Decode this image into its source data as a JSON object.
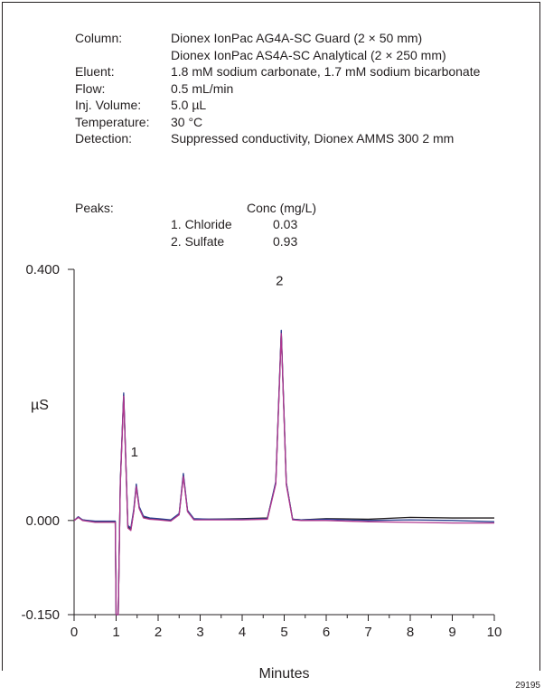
{
  "conditions": [
    {
      "label": "Column:",
      "values": [
        "Dionex IonPac AG4A-SC Guard (2 × 50 mm)",
        "Dionex IonPac AS4A-SC Analytical (2 × 250 mm)"
      ]
    },
    {
      "label": "Eluent:",
      "values": [
        "1.8 mM sodium carbonate, 1.7 mM sodium bicarbonate"
      ]
    },
    {
      "label": "Flow:",
      "values": [
        "0.5 mL/min"
      ]
    },
    {
      "label": "Inj. Volume:",
      "values": [
        "5.0 µL"
      ]
    },
    {
      "label": "Temperature:",
      "values": [
        "30 °C"
      ]
    },
    {
      "label": "Detection:",
      "values": [
        "Suppressed conductivity, Dionex AMMS 300 2 mm"
      ]
    }
  ],
  "peaks_table": {
    "label": "Peaks:",
    "conc_header": "Conc (mg/L)",
    "rows": [
      {
        "name": "1. Chloride",
        "conc": "0.03"
      },
      {
        "name": "2. Sulfate",
        "conc": "0.93"
      }
    ]
  },
  "figure_id": "29195",
  "chart_data": {
    "type": "line",
    "xlabel": "Minutes",
    "ylabel": "µS",
    "xlim": [
      0,
      10
    ],
    "ylim": [
      -0.15,
      0.4
    ],
    "x_ticks": [
      "0",
      "1",
      "2",
      "3",
      "4",
      "5",
      "6",
      "7",
      "8",
      "9",
      "10"
    ],
    "y_ticks": [
      "0.400",
      "0.000",
      "-0.150"
    ],
    "grid": false,
    "peak_labels": [
      {
        "text": "1",
        "x": 1.48,
        "y": 0.102
      },
      {
        "text": "2",
        "x": 4.93,
        "y": 0.375
      }
    ],
    "series": [
      {
        "color": "#231f20",
        "x": [
          0,
          0.1,
          0.2,
          0.5,
          0.98,
          1.0,
          1.05,
          1.1,
          1.18,
          1.28,
          1.35,
          1.42,
          1.48,
          1.55,
          1.65,
          1.8,
          2.0,
          2.3,
          2.5,
          2.6,
          2.7,
          2.85,
          3.2,
          4.0,
          4.6,
          4.8,
          4.93,
          5.05,
          5.2,
          5.4,
          6.0,
          7.0,
          8.0,
          9.0,
          10.0
        ],
        "y": [
          0.0,
          0.005,
          0.001,
          -0.002,
          -0.002,
          -0.15,
          -0.15,
          0.06,
          0.2,
          -0.01,
          -0.015,
          0.015,
          0.055,
          0.02,
          0.006,
          0.003,
          0.002,
          0.0,
          0.01,
          0.072,
          0.015,
          0.002,
          0.002,
          0.003,
          0.004,
          0.06,
          0.3,
          0.06,
          0.002,
          0.001,
          0.003,
          0.002,
          0.005,
          0.004,
          0.004
        ]
      },
      {
        "color": "#2a3f8f",
        "x": [
          0,
          0.1,
          0.2,
          0.5,
          0.98,
          1.0,
          1.05,
          1.1,
          1.18,
          1.28,
          1.35,
          1.42,
          1.48,
          1.55,
          1.65,
          1.8,
          2.0,
          2.3,
          2.5,
          2.6,
          2.7,
          2.85,
          3.2,
          4.0,
          4.6,
          4.8,
          4.93,
          5.05,
          5.2,
          5.4,
          6.0,
          7.0,
          8.0,
          9.0,
          10.0
        ],
        "y": [
          0.0,
          0.006,
          0.001,
          -0.001,
          -0.001,
          -0.15,
          -0.15,
          0.062,
          0.203,
          -0.008,
          -0.012,
          0.018,
          0.058,
          0.022,
          0.007,
          0.004,
          0.003,
          0.001,
          0.011,
          0.075,
          0.016,
          0.003,
          0.002,
          0.002,
          0.003,
          0.062,
          0.303,
          0.06,
          0.002,
          0.001,
          0.002,
          0.0,
          0.001,
          0.0,
          -0.002
        ]
      },
      {
        "color": "#b0378f",
        "x": [
          0,
          0.1,
          0.2,
          0.5,
          0.98,
          1.0,
          1.05,
          1.1,
          1.18,
          1.28,
          1.35,
          1.42,
          1.48,
          1.55,
          1.65,
          1.8,
          2.0,
          2.3,
          2.5,
          2.6,
          2.7,
          2.85,
          3.2,
          4.0,
          4.6,
          4.8,
          4.93,
          5.05,
          5.2,
          5.4,
          6.0,
          7.0,
          8.0,
          9.0,
          10.0
        ],
        "y": [
          0.0,
          0.005,
          0.0,
          -0.003,
          -0.003,
          -0.15,
          -0.15,
          0.058,
          0.198,
          -0.012,
          -0.016,
          0.014,
          0.054,
          0.019,
          0.004,
          0.002,
          0.001,
          -0.001,
          0.009,
          0.07,
          0.014,
          0.001,
          0.001,
          0.001,
          0.002,
          0.058,
          0.298,
          0.057,
          0.001,
          0.0,
          0.0,
          -0.002,
          -0.003,
          -0.004,
          -0.004
        ]
      }
    ]
  }
}
